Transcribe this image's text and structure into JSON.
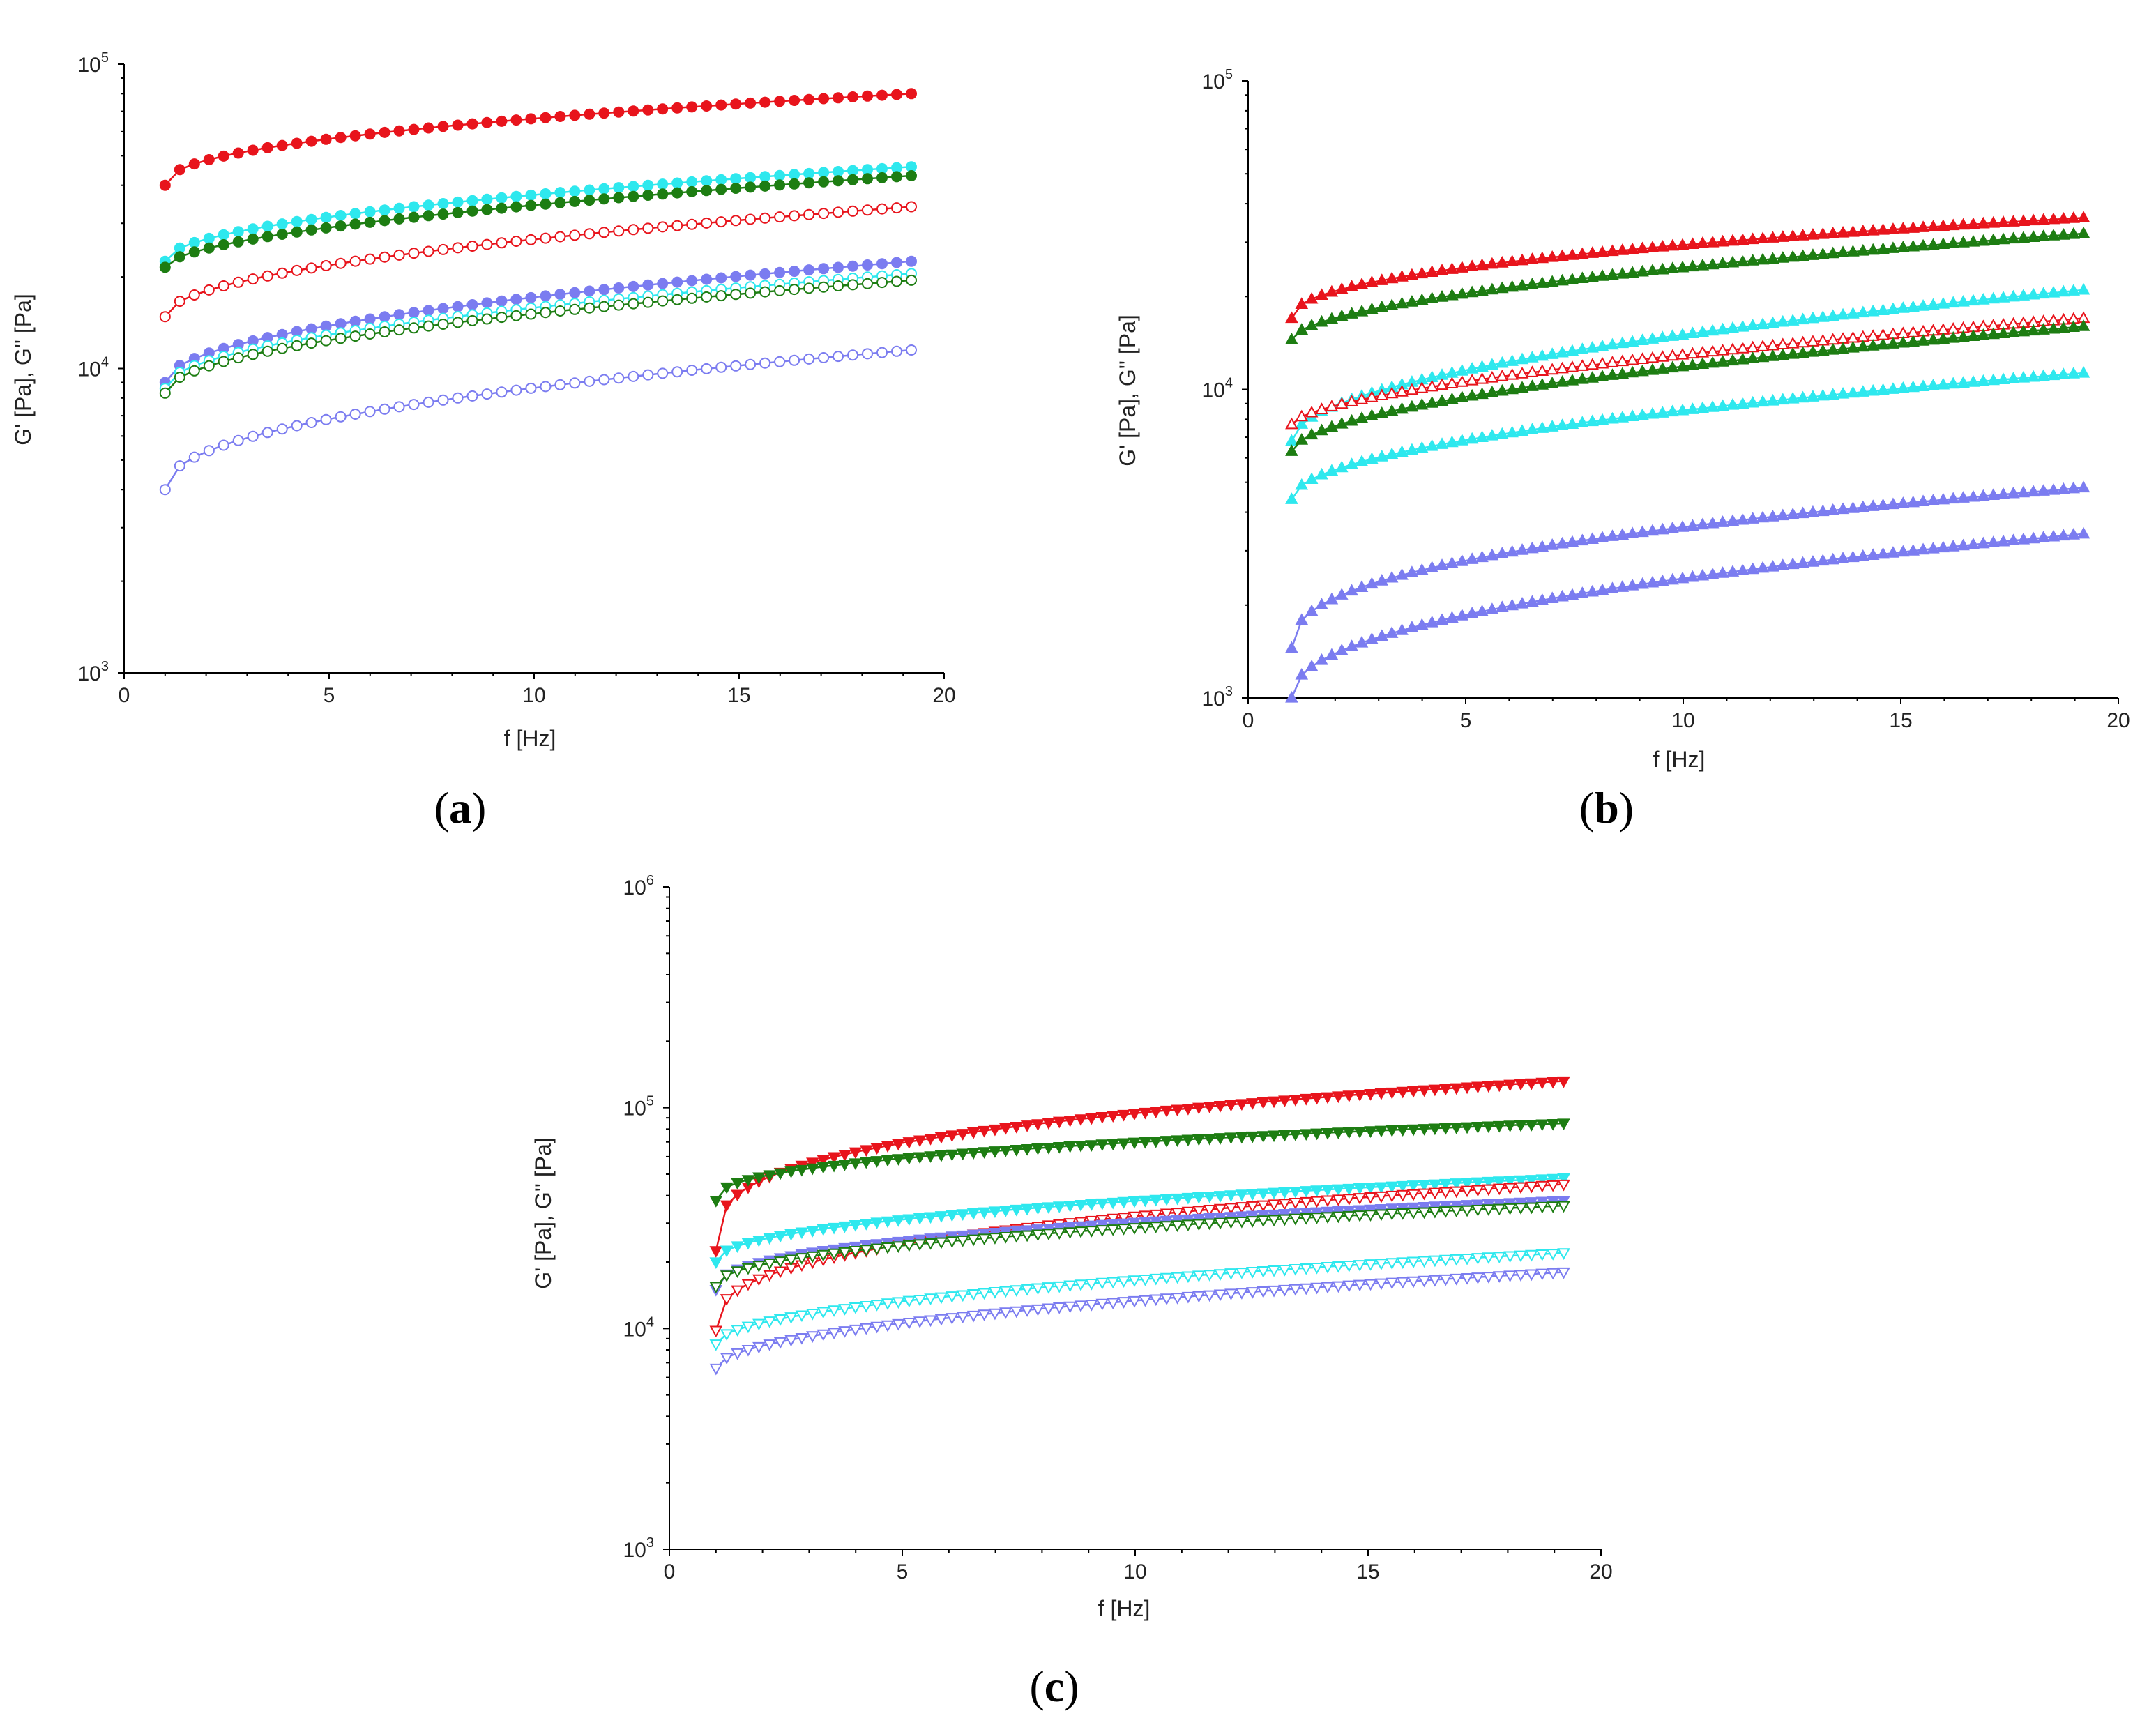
{
  "chart_data": [
    {
      "panel_label": "a",
      "type": "scatter",
      "xlabel": "f [Hz]",
      "ylabel": "G' [Pa], G'' [Pa]",
      "xlim": [
        0,
        20
      ],
      "xticks": [
        "0",
        "5",
        "10",
        "15",
        "20"
      ],
      "yscale": "log",
      "ylim": [
        1000,
        100000
      ],
      "yticks": [
        {
          "base": "10",
          "exp": "3"
        },
        {
          "base": "10",
          "exp": "4"
        },
        {
          "base": "10",
          "exp": "5"
        }
      ],
      "grid": false,
      "x_start": 1,
      "x_end": 19.2,
      "series": [
        {
          "name": "G' red",
          "color": "#e8141c",
          "marker": "circle",
          "filled": true,
          "y_start": 40000,
          "y_end": 80000,
          "shape": 0.45
        },
        {
          "name": "G' cyan",
          "color": "#2ee8ee",
          "marker": "circle",
          "filled": true,
          "y_start": 22500,
          "y_end": 46000,
          "shape": 0.5
        },
        {
          "name": "G' green",
          "color": "#1d7d12",
          "marker": "circle",
          "filled": true,
          "y_start": 21500,
          "y_end": 43000,
          "shape": 0.55
        },
        {
          "name": "G'' red",
          "color": "#e8141c",
          "marker": "circle",
          "filled": false,
          "y_start": 14800,
          "y_end": 34000,
          "shape": 0.5
        },
        {
          "name": "G' violet",
          "color": "#7b7cf0",
          "marker": "circle",
          "filled": true,
          "y_start": 9000,
          "y_end": 22500,
          "shape": 0.5
        },
        {
          "name": "G'' cyan",
          "color": "#2ee8ee",
          "marker": "circle",
          "filled": false,
          "y_start": 8600,
          "y_end": 20500,
          "shape": 0.5
        },
        {
          "name": "G'' green",
          "color": "#1d7d12",
          "marker": "circle",
          "filled": false,
          "y_start": 8300,
          "y_end": 19500,
          "shape": 0.5
        },
        {
          "name": "G'' violet",
          "color": "#7b7cf0",
          "marker": "circle",
          "filled": false,
          "y_start": 4000,
          "y_end": 11500,
          "shape": 0.45
        }
      ]
    },
    {
      "panel_label": "b",
      "type": "scatter",
      "xlabel": "f [Hz]",
      "ylabel": "G' [Pa], G'' [Pa]",
      "xlim": [
        0,
        20
      ],
      "xticks": [
        "0",
        "5",
        "10",
        "15",
        "20"
      ],
      "yscale": "log",
      "ylim": [
        1000,
        100000
      ],
      "yticks": [
        {
          "base": "10",
          "exp": "3"
        },
        {
          "base": "10",
          "exp": "4"
        },
        {
          "base": "10",
          "exp": "5"
        }
      ],
      "grid": false,
      "x_start": 1,
      "x_end": 19.2,
      "series": [
        {
          "name": "G' red",
          "color": "#e8141c",
          "marker": "triangle-up",
          "filled": true,
          "y_start": 17000,
          "y_end": 36000,
          "shape": 0.45
        },
        {
          "name": "G' green",
          "color": "#1d7d12",
          "marker": "triangle-up",
          "filled": true,
          "y_start": 14500,
          "y_end": 32000,
          "shape": 0.55
        },
        {
          "name": "G' cyan",
          "color": "#2ee8ee",
          "marker": "triangle-up",
          "filled": true,
          "y_start": 6800,
          "y_end": 21000,
          "shape": 0.5
        },
        {
          "name": "G'' red",
          "color": "#e8141c",
          "marker": "triangle-up",
          "filled": false,
          "y_start": 7700,
          "y_end": 17000,
          "shape": 0.6
        },
        {
          "name": "G'' green",
          "color": "#1d7d12",
          "marker": "triangle-up",
          "filled": true,
          "y_start": 6300,
          "y_end": 16000,
          "shape": 0.55
        },
        {
          "name": "G'' cyan",
          "color": "#2ee8ee",
          "marker": "triangle-up",
          "filled": true,
          "y_start": 4400,
          "y_end": 11300,
          "shape": 0.5
        },
        {
          "name": "G' violet",
          "color": "#7b7cf0",
          "marker": "triangle-up",
          "filled": true,
          "y_start": 1450,
          "y_end": 4800,
          "shape": 0.4
        },
        {
          "name": "G'' violet",
          "color": "#7b7cf0",
          "marker": "triangle-up",
          "filled": true,
          "y_start": 1000,
          "y_end": 3400,
          "shape": 0.45
        }
      ]
    },
    {
      "panel_label": "c",
      "type": "scatter",
      "xlabel": "f [Hz]",
      "ylabel": "G' [Pa], G'' [Pa]",
      "xlim": [
        0,
        20
      ],
      "xticks": [
        "0",
        "5",
        "10",
        "15",
        "20"
      ],
      "yscale": "log",
      "ylim": [
        1000,
        1000000
      ],
      "yticks": [
        {
          "base": "10",
          "exp": "3"
        },
        {
          "base": "10",
          "exp": "4"
        },
        {
          "base": "10",
          "exp": "5"
        },
        {
          "base": "10",
          "exp": "6"
        }
      ],
      "grid": false,
      "x_start": 1,
      "x_end": 19.2,
      "series": [
        {
          "name": "G' red",
          "color": "#e8141c",
          "marker": "triangle-down",
          "filled": true,
          "y_start": 22500,
          "y_end": 132000,
          "shape": 0.3
        },
        {
          "name": "G' green",
          "color": "#1d7d12",
          "marker": "triangle-down",
          "filled": true,
          "y_start": 38000,
          "y_end": 85000,
          "shape": 0.4
        },
        {
          "name": "G' cyan",
          "color": "#2ee8ee",
          "marker": "triangle-down",
          "filled": true,
          "y_start": 20000,
          "y_end": 48000,
          "shape": 0.45
        },
        {
          "name": "G'' red",
          "color": "#e8141c",
          "marker": "triangle-down",
          "filled": false,
          "y_start": 9800,
          "y_end": 45000,
          "shape": 0.35
        },
        {
          "name": "G' violet",
          "color": "#7b7cf0",
          "marker": "triangle-down",
          "filled": true,
          "y_start": 15000,
          "y_end": 38000,
          "shape": 0.4
        },
        {
          "name": "G'' green",
          "color": "#1d7d12",
          "marker": "triangle-down",
          "filled": false,
          "y_start": 15500,
          "y_end": 36000,
          "shape": 0.45
        },
        {
          "name": "G'' cyan",
          "color": "#2ee8ee",
          "marker": "triangle-down",
          "filled": false,
          "y_start": 8500,
          "y_end": 22000,
          "shape": 0.5
        },
        {
          "name": "G'' violet",
          "color": "#7b7cf0",
          "marker": "triangle-down",
          "filled": false,
          "y_start": 6600,
          "y_end": 18000,
          "shape": 0.5
        }
      ]
    }
  ]
}
